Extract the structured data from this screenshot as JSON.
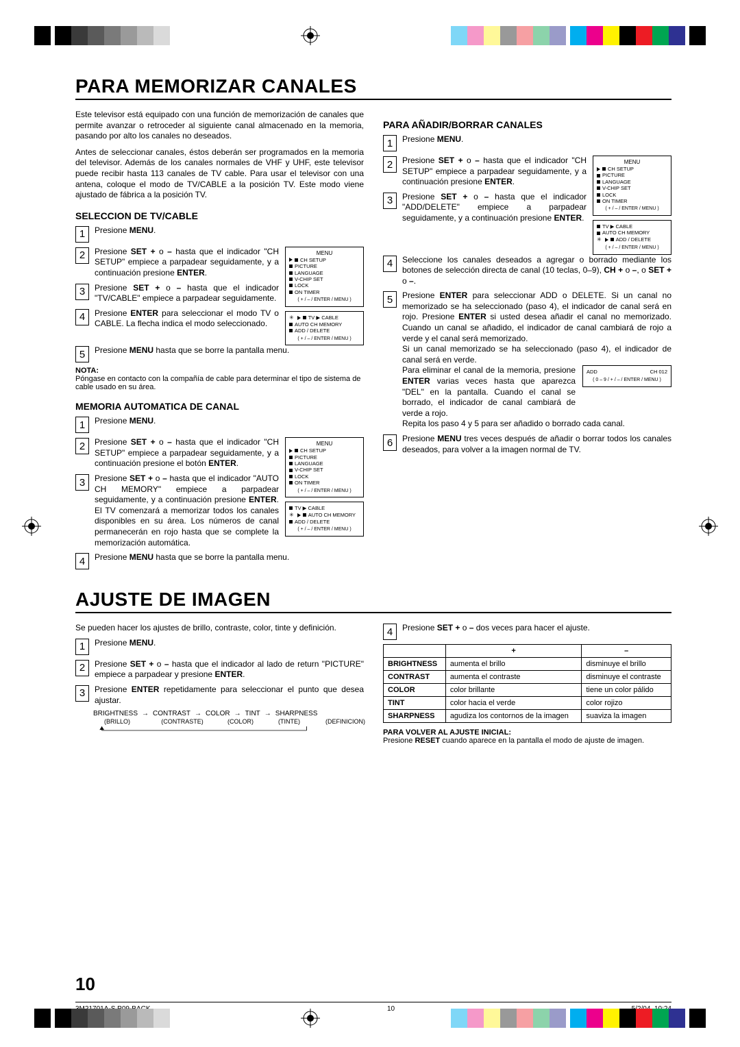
{
  "print_bars": {
    "gray_colors": [
      "#000000",
      "#3a3a3a",
      "#5a5a5a",
      "#7a7a7a",
      "#9a9a9a",
      "#bababa",
      "#dadada"
    ],
    "cmyk_colors": [
      "#00aeef",
      "#ec008c",
      "#fff200",
      "#000000",
      "#ed1c24",
      "#00a651",
      "#2e3192"
    ],
    "cmyk_dim": [
      "#7fd7f7",
      "#f599c9",
      "#fff899",
      "#999999",
      "#f6a0a3",
      "#8cd3ab",
      "#9a9bc9"
    ]
  },
  "h1a": "PARA MEMORIZAR CANALES",
  "intro1": "Este televisor está equipado con una función de memorización de canales que permite avanzar o retroceder al siguiente canal almacenado en la memoria, pasando por alto los canales no deseados.",
  "intro2": "Antes de seleccionar canales, éstos deberán ser programados en la memoria del televisor. Además de los canales normales de VHF y UHF, este televisor puede recibir hasta 113 canales de TV cable. Para usar el televisor con una antena, coloque el modo de TV/CABLE a la posición TV. Este modo viene ajustado de fábrica a la posición TV.",
  "sub_tvcable": "SELECCION DE TV/CABLE",
  "tv_steps": {
    "s1": "Presione <b>MENU</b>.",
    "s2": "Presione <b>SET +</b> o <b>–</b> hasta que el indicador \"CH SETUP\" empiece a parpadear seguidamente, y a continuación presione <b>ENTER</b>.",
    "s3": "Presione <b>SET +</b> o <b>–</b> hasta que el indicador \"TV/CABLE\" empiece a parpadear seguidamente.",
    "s4": "Presione <b>ENTER</b> para seleccionar el modo TV o CABLE. La flecha indica el modo seleccionado.",
    "s5": "Presione <b>MENU</b> hasta que se borre la pantalla menu."
  },
  "nota_label": "NOTA:",
  "nota": "Póngase en contacto con la compañía de cable para determinar el tipo de sistema de cable usado en su área.",
  "sub_memoria": "MEMORIA AUTOMATICA DE CANAL",
  "mem_steps": {
    "s1": "Presione <b>MENU</b>.",
    "s2": "Presione <b>SET +</b> o <b>–</b> hasta que el indicador \"CH SETUP\" empiece a parpadear seguidamente, y a continuación presione el botón <b>ENTER</b>.",
    "s3": "Presione <b>SET +</b> o <b>–</b> hasta que el indicador \"AUTO CH MEMORY\" empiece a parpadear seguidamente, y a continuación presione <b>ENTER</b>. El TV comenzará a memorizar todos los canales disponibles en su área. Los números de canal permanecerán en rojo hasta que se complete la memorización automática.",
    "s4": "Presione <b>MENU</b> hasta que se borre la pantalla menu."
  },
  "sub_anadir": "PARA AÑADIR/BORRAR CANALES",
  "add_steps": {
    "s1": "Presione <b>MENU</b>.",
    "s2": "Presione <b>SET +</b> o <b>–</b> hasta que el indicador \"CH SETUP\" empiece a parpadear seguidamente, y a continuación presione <b>ENTER</b>.",
    "s3": "Presione <b>SET +</b> o <b>–</b> hasta que el indicador \"ADD/DELETE\" empiece a parpadear seguidamente, y a continuación presione <b>ENTER</b>.",
    "s4": "Seleccione los canales deseados a agregar o borrado mediante los botones de selección directa de canal (10 teclas, 0–9), <b>CH +</b> o <b>–</b>, o <b>SET +</b> o <b>–</b>.",
    "s5a": "Presione <b>ENTER</b> para seleccionar ADD o DELETE. Si un canal no memorizado se ha seleccionado (paso 4), el indicador de canal será en rojo. Presione <b>ENTER</b> si usted desea añadir el canal no memorizado. Cuando un canal se añadido, el indicador de canal cambiará de rojo a verde y el canal será memorizado.",
    "s5b": "Si un canal memorizado se ha seleccionado (paso 4), el indicador de canal será en verde.",
    "s5c": "Para eliminar el canal de la memoria, presione <b>ENTER</b> varias veces hasta que aparezca \"DEL\" en la pantalla. Cuando el canal se borrado, el indicador de canal cambiará de verde a rojo.",
    "s5d": "Repita los paso 4 y 5 para ser añadido o borrado cada canal.",
    "s6": "Presione <b>MENU</b> tres veces después de añadir o borrar todos los canales deseados, para volver a la imagen normal de TV."
  },
  "menu_main": {
    "title": "MENU",
    "items": [
      "CH SETUP",
      "PICTURE",
      "LANGUAGE",
      "V-CHIP SET",
      "LOCK",
      "ON TIMER"
    ],
    "foot": "( + / – / ENTER / MENU )"
  },
  "menu_tv": {
    "items": [
      "TV ▶ CABLE",
      "AUTO CH MEMORY",
      "ADD / DELETE"
    ],
    "foot": "( + / – / ENTER / MENU )"
  },
  "menu_add_small": {
    "line1": "ADD",
    "line2": "CH 012",
    "foot": "( 0 – 9 / + / – / ENTER / MENU )"
  },
  "h1b": "AJUSTE DE IMAGEN",
  "adj_intro": "Se pueden hacer los ajustes de brillo, contraste, color, tinte y definición.",
  "adj_steps": {
    "s1": "Presione <b>MENU</b>.",
    "s2": "Presione <b>SET +</b> o <b>–</b> hasta que el indicador al lado de return \"PICTURE\" empiece a parpadear y presione <b>ENTER</b>.",
    "s3": "Presione <b>ENTER</b> repetidamente para seleccionar el punto que desea ajustar.",
    "s4": "Presione <b>SET +</b> o <b>–</b> dos veces para hacer el ajuste."
  },
  "flow": {
    "items": [
      "BRIGHTNESS",
      "CONTRAST",
      "COLOR",
      "TINT",
      "SHARPNESS"
    ],
    "sub": [
      "(BRILLO)",
      "(CONTRASTE)",
      "(COLOR)",
      "(TINTE)",
      "(DEFINICION)"
    ]
  },
  "table": {
    "head_plus": "+",
    "head_minus": "–",
    "rows": [
      {
        "label": "BRIGHTNESS",
        "plus": "aumenta el brillo",
        "minus": "disminuye el brillo"
      },
      {
        "label": "CONTRAST",
        "plus": "aumenta el contraste",
        "minus": "disminuye el contraste"
      },
      {
        "label": "COLOR",
        "plus": "color brillante",
        "minus": "tiene un color pálido"
      },
      {
        "label": "TINT",
        "plus": "color hacia el verde",
        "minus": "color rojizo"
      },
      {
        "label": "SHARPNESS",
        "plus": "agudiza los contornos de la imagen",
        "minus": "suaviza la imagen"
      }
    ]
  },
  "reset_label": "PARA VOLVER AL AJUSTE INICIAL:",
  "reset_text": "Presione <b>RESET</b> cuando aparece en la pantalla el modo de ajuste de imagen.",
  "page_num": "10",
  "footer": {
    "left": "3M21701A-S P09-BACK",
    "mid": "10",
    "right": "5/2/04, 10:24"
  }
}
